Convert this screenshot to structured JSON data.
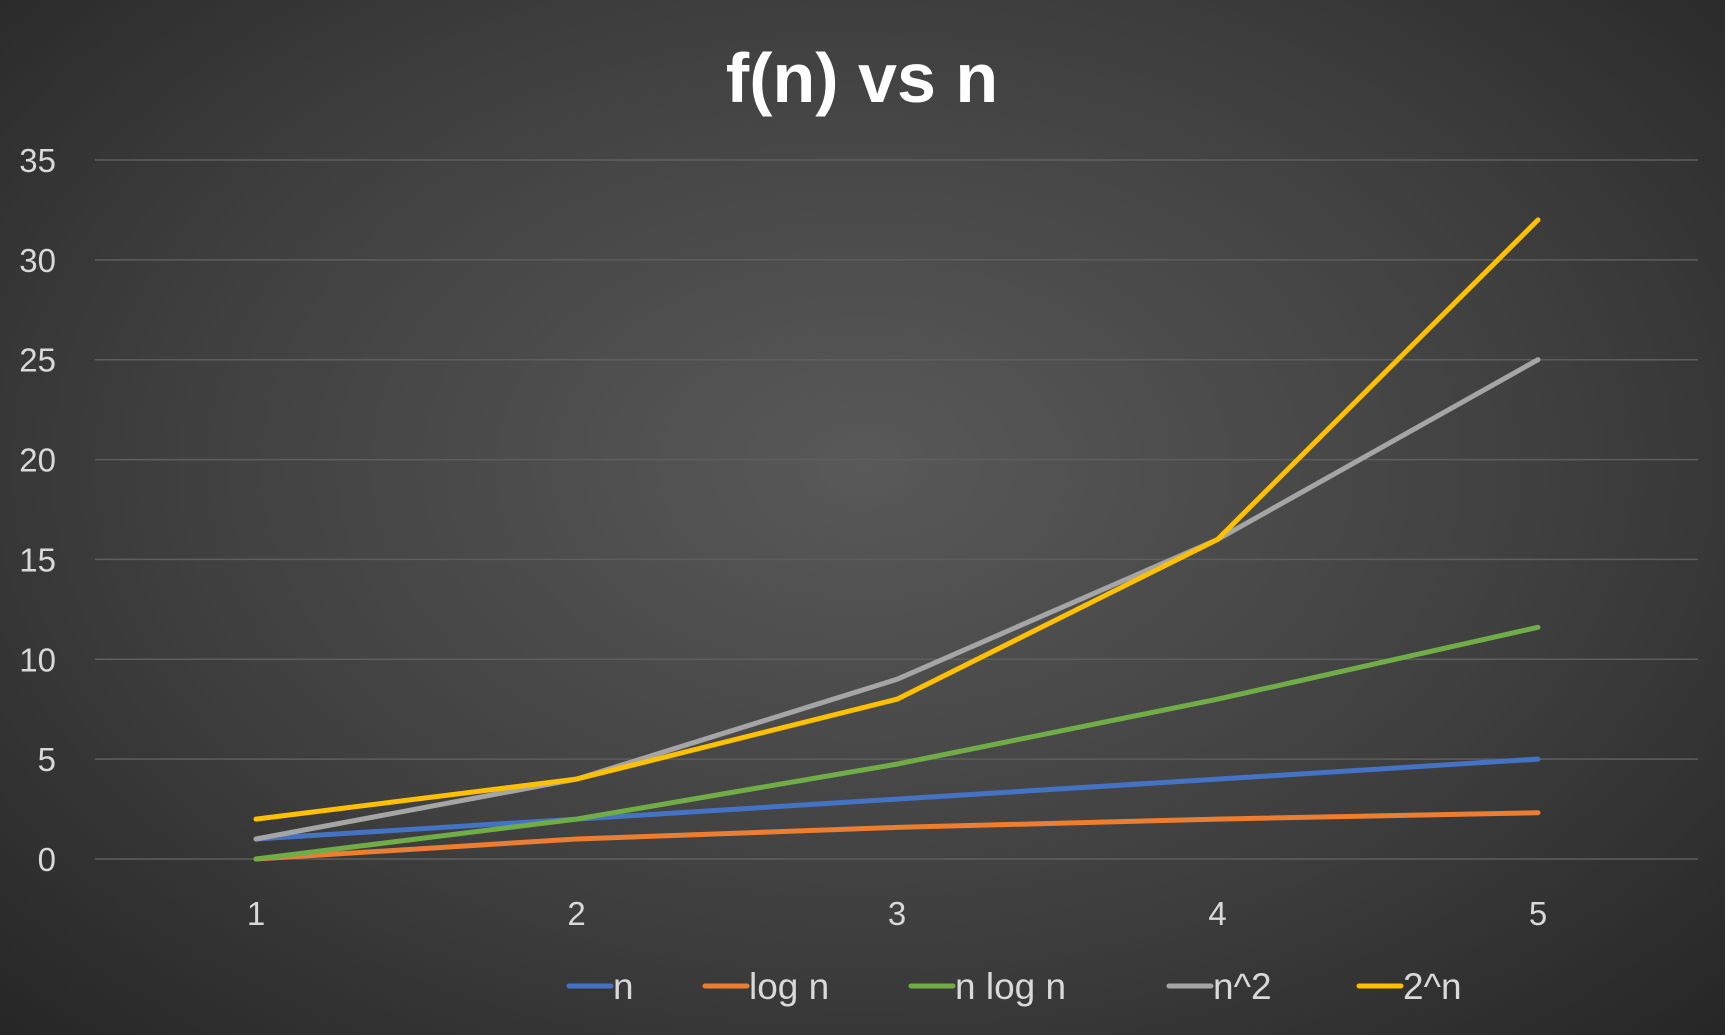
{
  "chart_data": {
    "type": "line",
    "title": "f(n) vs n",
    "xlabel": "",
    "ylabel": "",
    "categories": [
      "1",
      "2",
      "3",
      "4",
      "5"
    ],
    "ylim": [
      0,
      35
    ],
    "yticks": [
      "0",
      "5",
      "10",
      "15",
      "20",
      "25",
      "30",
      "35"
    ],
    "grid": "horizontal",
    "legend_position": "bottom",
    "series": [
      {
        "name": "n",
        "color": "#4472c4",
        "values": [
          1,
          2,
          3,
          4,
          5
        ]
      },
      {
        "name": "log n",
        "color": "#ed7d31",
        "values": [
          0,
          1,
          1.58,
          2,
          2.32
        ]
      },
      {
        "name": "n log n",
        "color": "#70ad47",
        "values": [
          0,
          2,
          4.75,
          8,
          11.6
        ]
      },
      {
        "name": "n^2",
        "color": "#a5a5a5",
        "values": [
          1,
          4,
          9,
          16,
          25
        ]
      },
      {
        "name": "2^n",
        "color": "#ffc000",
        "values": [
          2,
          4,
          8,
          16,
          32
        ]
      }
    ]
  }
}
